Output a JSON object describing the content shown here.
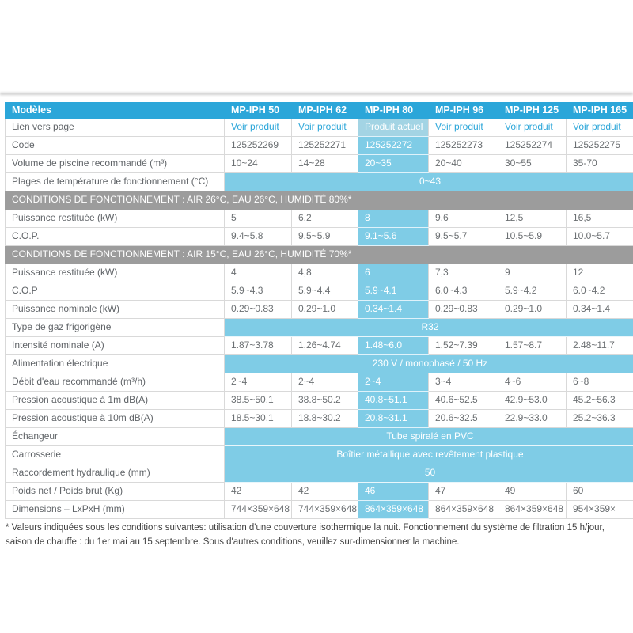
{
  "colors": {
    "header_blue": "#2ba6d9",
    "highlight_blue": "#7fcce6",
    "current_cell_blue": "#a3d4e4",
    "section_gray": "#9c9c9c",
    "link_blue": "#2ba6d9"
  },
  "table": {
    "corner_label": "Modèles",
    "columns": [
      "MP-IPH 50",
      "MP-IPH 62",
      "MP-IPH 80",
      "MP-IPH 96",
      "MP-IPH 125",
      "MP-IPH 165"
    ],
    "highlight_column_index": 2,
    "rows": [
      {
        "type": "links",
        "label": "Lien vers page",
        "values": [
          "Voir produit",
          "Voir produit",
          "Produit actuel",
          "Voir produit",
          "Voir produit",
          "Voir produit"
        ]
      },
      {
        "type": "data",
        "label": "Code",
        "values": [
          "125252269",
          "125252271",
          "125252272",
          "125252273",
          "125252274",
          "125252275"
        ]
      },
      {
        "type": "data",
        "label": "Volume de piscine recommandé (m³)",
        "values": [
          "10~24",
          "14~28",
          "20~35",
          "20~40",
          "30~55",
          "35-70"
        ]
      },
      {
        "type": "merged",
        "label": "Plages de température de fonctionnement (°C)",
        "value": "0~43"
      },
      {
        "type": "section",
        "label": "CONDITIONS DE FONCTIONNEMENT : AIR 26°C, EAU 26°C, HUMIDITÉ 80%*"
      },
      {
        "type": "data",
        "label": "Puissance restituée (kW)",
        "values": [
          "5",
          "6,2",
          "8",
          "9,6",
          "12,5",
          "16,5"
        ]
      },
      {
        "type": "data",
        "label": "C.O.P.",
        "values": [
          "9.4~5.8",
          "9.5~5.9",
          "9.1~5.6",
          "9.5~5.7",
          "10.5~5.9",
          "10.0~5.7"
        ]
      },
      {
        "type": "section",
        "label": "CONDITIONS DE FONCTIONNEMENT : AIR 15°C, EAU 26°C, HUMIDITÉ 70%*"
      },
      {
        "type": "data",
        "label": "Puissance restituée (kW)",
        "values": [
          "4",
          "4,8",
          "6",
          "7,3",
          "9",
          "12"
        ]
      },
      {
        "type": "data",
        "label": "C.O.P",
        "values": [
          "5.9~4.3",
          "5.9~4.4",
          "5.9~4.1",
          "6.0~4.3",
          "5.9~4.2",
          "6.0~4.2"
        ]
      },
      {
        "type": "data",
        "label": "Puissance nominale (kW)",
        "values": [
          "0.29~0.83",
          "0.29~1.0",
          "0.34~1.4",
          "0.29~0.83",
          "0.29~1.0",
          "0.34~1.4"
        ]
      },
      {
        "type": "merged",
        "label": "Type de gaz frigorigène",
        "value": "R32"
      },
      {
        "type": "data",
        "label": "Intensité nominale (A)",
        "values": [
          "1.87~3.78",
          "1.26~4.74",
          "1.48~6.0",
          "1.52~7.39",
          "1.57~8.7",
          "2.48~11.7"
        ]
      },
      {
        "type": "merged",
        "label": "Alimentation électrique",
        "value": "230 V / monophasé / 50 Hz"
      },
      {
        "type": "data",
        "label": "Débit d'eau recommandé (m³/h)",
        "values": [
          "2~4",
          "2~4",
          "2~4",
          "3~4",
          "4~6",
          "6~8"
        ]
      },
      {
        "type": "data",
        "label": "Pression acoustique à 1m dB(A)",
        "values": [
          "38.5~50.1",
          "38.8~50.2",
          "40.8~51.1",
          "40.6~52.5",
          "42.9~53.0",
          "45.2~56.3"
        ]
      },
      {
        "type": "data",
        "label": "Pression acoustique à 10m dB(A)",
        "values": [
          "18.5~30.1",
          "18.8~30.2",
          "20.8~31.1",
          "20.6~32.5",
          "22.9~33.0",
          "25.2~36.3"
        ]
      },
      {
        "type": "merged",
        "label": "Échangeur",
        "value": "Tube spiralé en PVC"
      },
      {
        "type": "merged",
        "label": "Carrosserie",
        "value": "Boîtier métallique avec revêtement plastique"
      },
      {
        "type": "merged",
        "label": "Raccordement hydraulique (mm)",
        "value": "50"
      },
      {
        "type": "data",
        "label": "Poids net / Poids brut (Kg)",
        "values": [
          "42",
          "42",
          "46",
          "47",
          "49",
          "60"
        ]
      },
      {
        "type": "data",
        "label": "Dimensions – LxPxH (mm)",
        "values": [
          "744×359×648",
          "744×359×648",
          "864×359×648",
          "864×359×648",
          "864×359×648",
          "954×359×"
        ]
      }
    ]
  },
  "footnote": "* Valeurs indiquées sous les conditions suivantes: utilisation d'une couverture isothermique la nuit. Fonctionnement du système de filtration 15 h/jour, saison de chauffe : du 1er mai au 15 septembre. Sous d'autres conditions, veuillez sur-dimensionner la machine."
}
